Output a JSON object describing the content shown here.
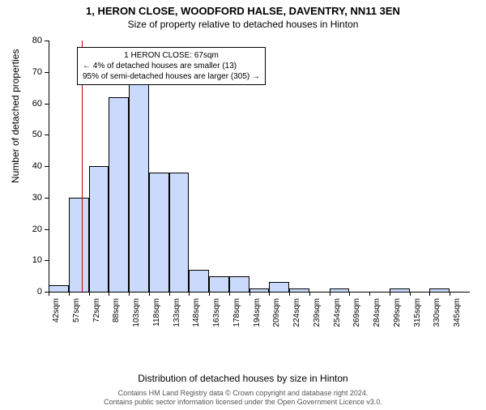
{
  "titles": {
    "main": "1, HERON CLOSE, WOODFORD HALSE, DAVENTRY, NN11 3EN",
    "sub": "Size of property relative to detached houses in Hinton"
  },
  "axes": {
    "ylabel": "Number of detached properties",
    "xlabel": "Distribution of detached houses by size in Hinton",
    "ylim": [
      0,
      80
    ],
    "ytick_step": 10,
    "label_fontsize": 12,
    "tick_fontsize": 11
  },
  "chart": {
    "type": "histogram",
    "x_start": 42,
    "x_step": 15,
    "x_unit": "sqm",
    "bar_color": "#c9dafc",
    "bar_border": "#000000",
    "background_color": "#ffffff",
    "axis_color": "#000000",
    "reference_line": {
      "x": 67,
      "color": "#cc0000"
    },
    "categories": [
      "42sqm",
      "57sqm",
      "72sqm",
      "88sqm",
      "103sqm",
      "118sqm",
      "133sqm",
      "148sqm",
      "163sqm",
      "178sqm",
      "194sqm",
      "209sqm",
      "224sqm",
      "239sqm",
      "254sqm",
      "269sqm",
      "284sqm",
      "299sqm",
      "315sqm",
      "330sqm",
      "345sqm"
    ],
    "values": [
      2,
      30,
      40,
      62,
      66,
      38,
      38,
      7,
      5,
      5,
      1,
      3,
      1,
      0,
      1,
      0,
      0,
      1,
      0,
      1,
      0
    ]
  },
  "annotation": {
    "line1": "1 HERON CLOSE: 67sqm",
    "line2": "← 4% of detached houses are smaller (13)",
    "line3": "95% of semi-detached houses are larger (305) →"
  },
  "footer": {
    "line1": "Contains HM Land Registry data © Crown copyright and database right 2024.",
    "line2": "Contains public sector information licensed under the Open Government Licence v3.0."
  }
}
